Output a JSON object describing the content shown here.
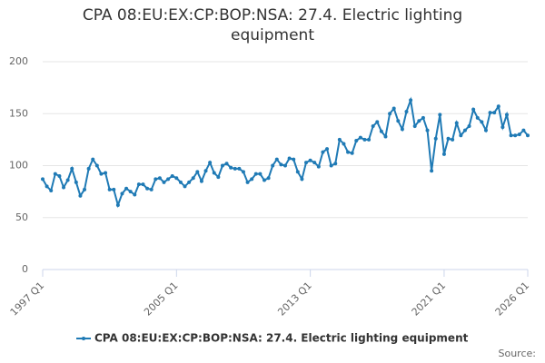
{
  "chart_data": {
    "type": "line",
    "title": "CPA 08:EU:EX:CP:BOP:NSA: 27.4. Electric lighting equipment",
    "source_label": "Source:",
    "categories": [
      "1997 Q1",
      null,
      null,
      null,
      null,
      null,
      null,
      null,
      null,
      null,
      null,
      null,
      null,
      null,
      null,
      null,
      null,
      null,
      null,
      null,
      null,
      null,
      null,
      null,
      null,
      null,
      null,
      null,
      null,
      null,
      null,
      null,
      "2005 Q1",
      null,
      null,
      null,
      null,
      null,
      null,
      null,
      null,
      null,
      null,
      null,
      null,
      null,
      null,
      null,
      null,
      null,
      null,
      null,
      null,
      null,
      null,
      null,
      null,
      null,
      null,
      null,
      null,
      null,
      null,
      null,
      "2013 Q1",
      null,
      null,
      null,
      null,
      null,
      null,
      null,
      null,
      null,
      null,
      null,
      null,
      null,
      null,
      null,
      null,
      null,
      null,
      null,
      null,
      null,
      null,
      null,
      null,
      null,
      null,
      null,
      null,
      null,
      null,
      null,
      "2021 Q1",
      null,
      null,
      null,
      null,
      null,
      null,
      null,
      null,
      null,
      null,
      null,
      null,
      null,
      null,
      null,
      null,
      null,
      null,
      null,
      "2026 Q1"
    ],
    "series": [
      {
        "name": "CPA 08:EU:EX:CP:BOP:NSA: 27.4. Electric lighting equipment",
        "color": "#1f7ab5",
        "values": [
          87,
          80,
          76,
          92,
          90,
          79,
          86,
          97,
          84,
          71,
          77,
          97,
          106,
          100,
          92,
          93,
          77,
          77,
          62,
          73,
          78,
          75,
          72,
          82,
          82,
          78,
          77,
          87,
          88,
          84,
          87,
          90,
          88,
          84,
          80,
          84,
          88,
          94,
          85,
          95,
          103,
          93,
          89,
          100,
          102,
          98,
          97,
          97,
          94,
          84,
          87,
          92,
          92,
          86,
          88,
          100,
          106,
          101,
          100,
          107,
          106,
          94,
          87,
          103,
          105,
          103,
          99,
          113,
          116,
          100,
          102,
          125,
          121,
          113,
          112,
          124,
          127,
          125,
          125,
          138,
          142,
          133,
          128,
          150,
          155,
          143,
          135,
          152,
          163,
          138,
          143,
          146,
          134,
          95,
          126,
          149,
          111,
          126,
          125,
          141,
          129,
          134,
          138,
          154,
          146,
          142,
          134,
          151,
          151,
          157,
          137,
          149,
          129,
          129,
          130,
          134,
          129
        ]
      }
    ],
    "ylim": [
      0,
      200
    ],
    "yticks": [
      0,
      50,
      100,
      150,
      200
    ],
    "grid": true
  }
}
